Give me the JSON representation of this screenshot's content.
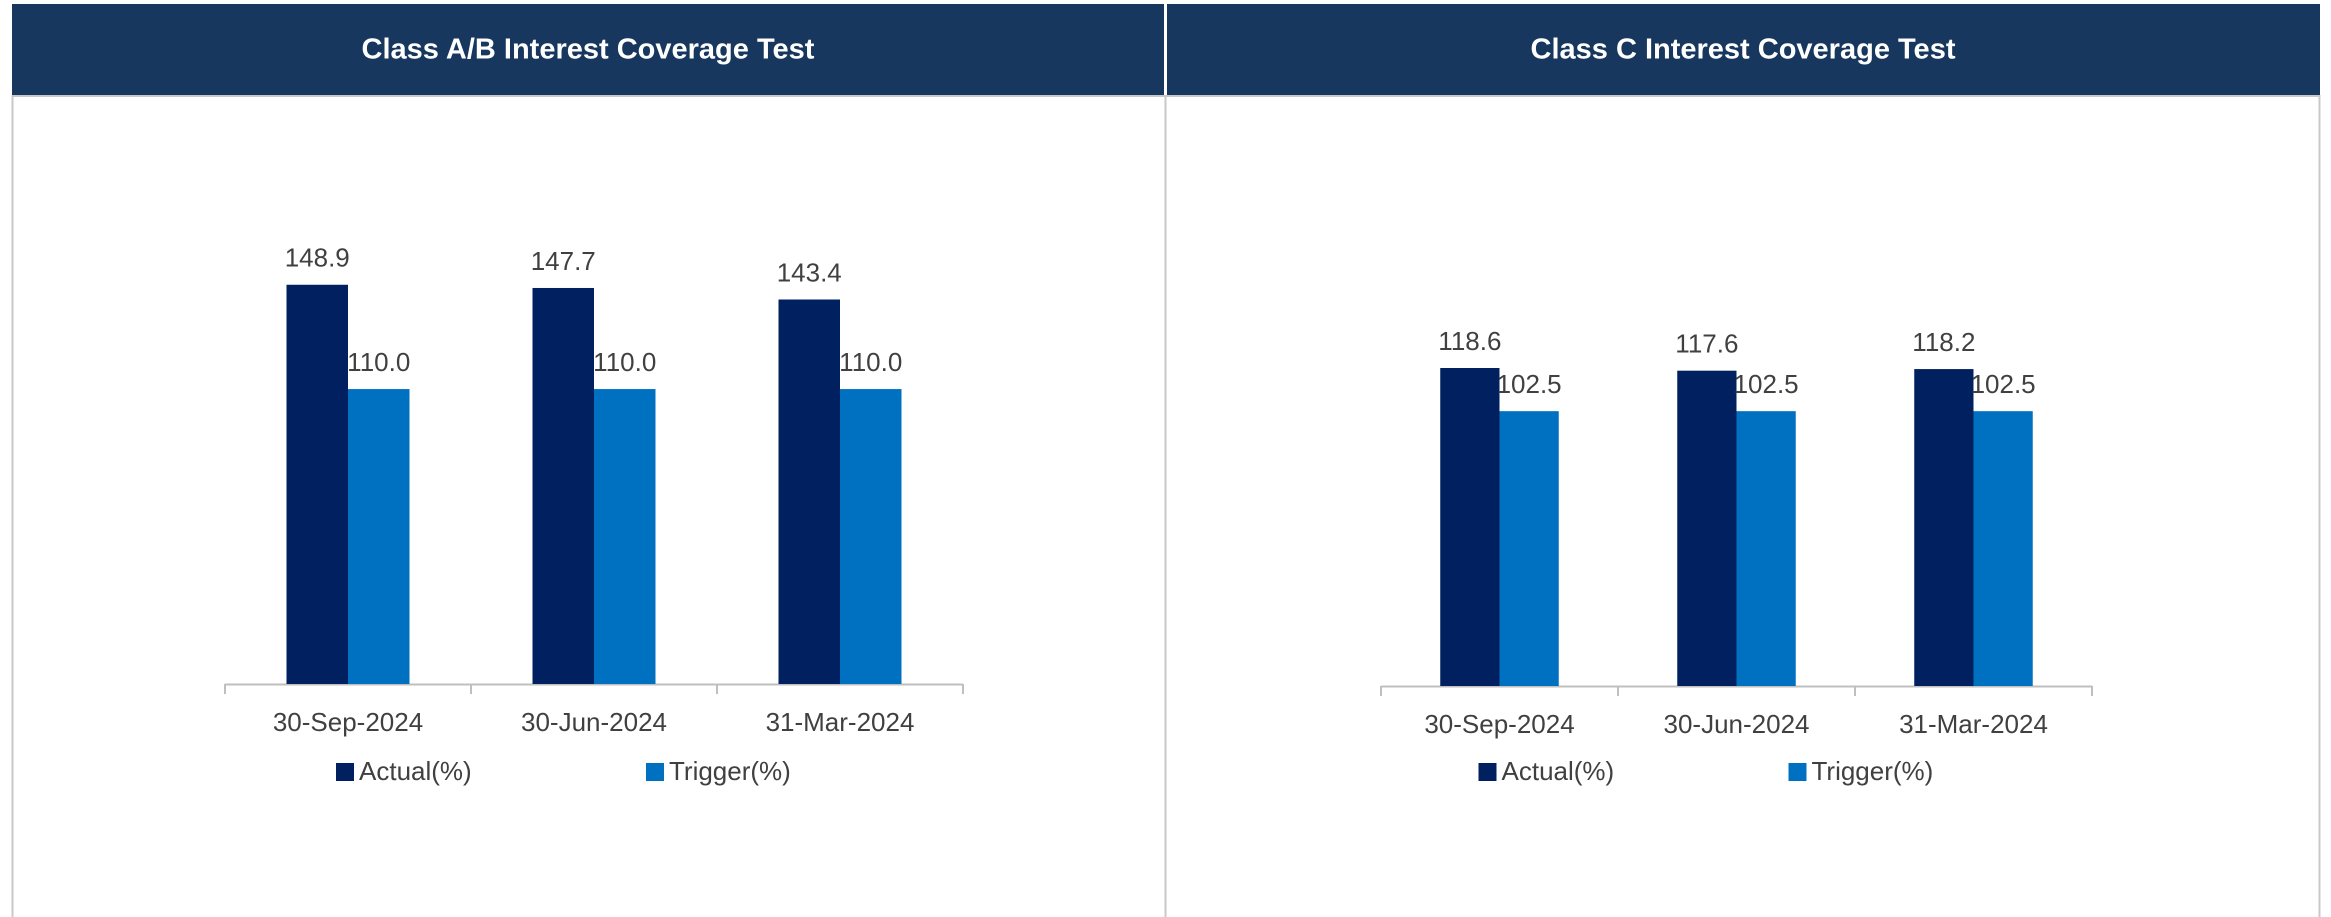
{
  "chart_data": [
    {
      "type": "bar",
      "title": "Class A/B Interest Coverage Test",
      "categories": [
        "30-Sep-2024",
        "30-Jun-2024",
        "31-Mar-2024"
      ],
      "series": [
        {
          "name": "Actual(%)",
          "color": "#002060",
          "values": [
            148.9,
            147.7,
            143.4
          ],
          "value_labels": [
            "148.9",
            "147.7",
            "143.4"
          ]
        },
        {
          "name": "Trigger(%)",
          "color": "#0070c0",
          "values": [
            110,
            110,
            110
          ],
          "value_labels": [
            "110.0",
            "110.0",
            "110.0"
          ]
        }
      ],
      "ylim": [
        0,
        160
      ]
    },
    {
      "type": "bar",
      "title": "Class C Interest Coverage Test",
      "categories": [
        "30-Sep-2024",
        "30-Jun-2024",
        "31-Mar-2024"
      ],
      "series": [
        {
          "name": "Actual(%)",
          "color": "#002060",
          "values": [
            118.6,
            117.6,
            118.2
          ],
          "value_labels": [
            "118.6",
            "117.6",
            "118.2"
          ]
        },
        {
          "name": "Trigger(%)",
          "color": "#0070c0",
          "values": [
            102.5,
            102.5,
            102.5
          ],
          "value_labels": [
            "102.5",
            "102.5",
            "102.5"
          ]
        }
      ],
      "ylim": [
        0,
        160
      ]
    }
  ]
}
